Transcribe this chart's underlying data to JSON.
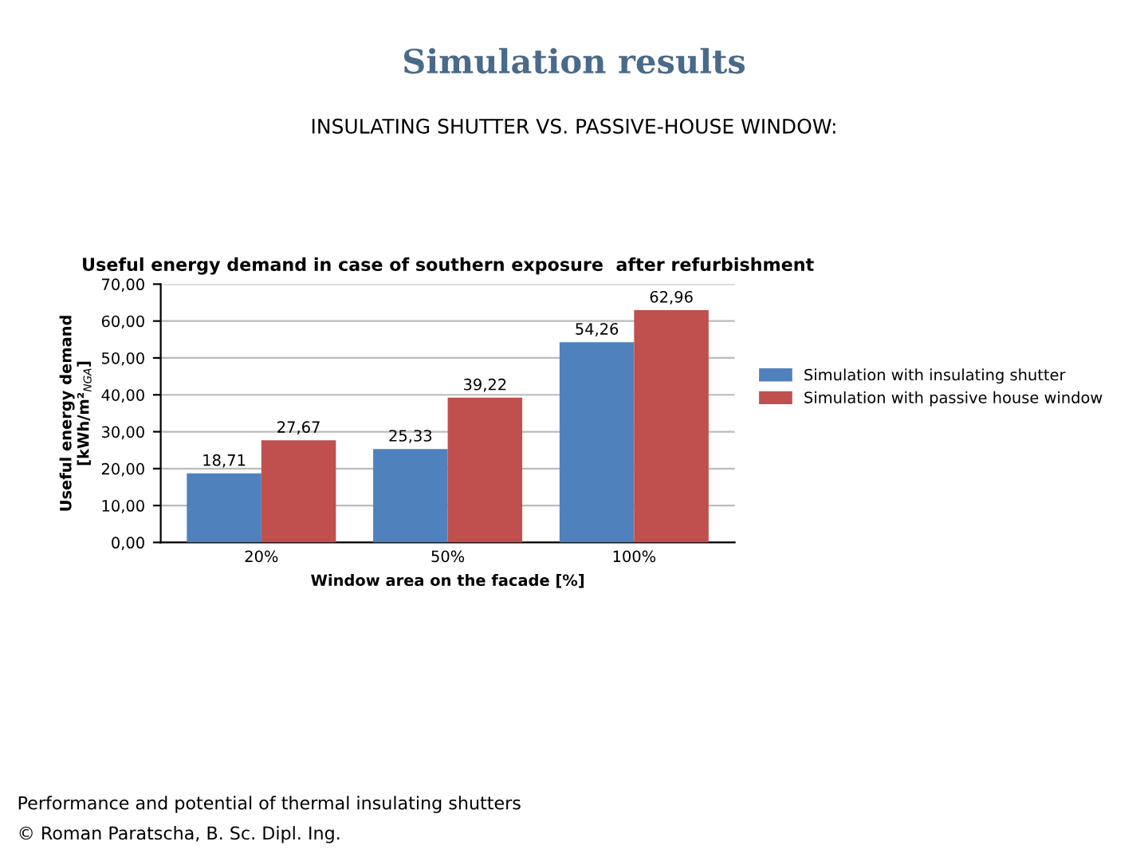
{
  "chart_data": {
    "type": "bar",
    "title": "Useful energy demand in case of southern exposure  after refurbishment",
    "xlabel": "Window area on the facade [%]",
    "ylabel": "Useful energy demand\n[kWh/m²$_{NGA}$]",
    "categories": [
      "20%",
      "50%",
      "100%"
    ],
    "series": [
      {
        "name": "Simulation with insulating shutter",
        "color": "#4f81bd",
        "values": [
          18.71,
          25.33,
          54.26
        ],
        "value_labels": [
          "18,71",
          "25,33",
          "54,26"
        ]
      },
      {
        "name": "Simulation with passive house window",
        "color": "#c0504d",
        "values": [
          27.67,
          39.22,
          62.96
        ],
        "value_labels": [
          "27,67",
          "39,22",
          "62,96"
        ]
      }
    ],
    "ylim": [
      0,
      70
    ],
    "yticks": [
      {
        "value": 0,
        "label": "0,00"
      },
      {
        "value": 10,
        "label": "10,00"
      },
      {
        "value": 20,
        "label": "20,00"
      },
      {
        "value": 30,
        "label": "30,00"
      },
      {
        "value": 40,
        "label": "40,00"
      },
      {
        "value": 50,
        "label": "50,00"
      },
      {
        "value": 60,
        "label": "60,00"
      },
      {
        "value": 70,
        "label": "70,00"
      }
    ],
    "grid": "y",
    "legend": "right",
    "annotations": [
      "Simulation results",
      "INSULATING SHUTTER VS. PASSIVE-HOUSE WINDOW:",
      "Performance and potential of thermal insulating shutters",
      "© Roman Paratscha, B. Sc. Dipl. Ing."
    ]
  }
}
